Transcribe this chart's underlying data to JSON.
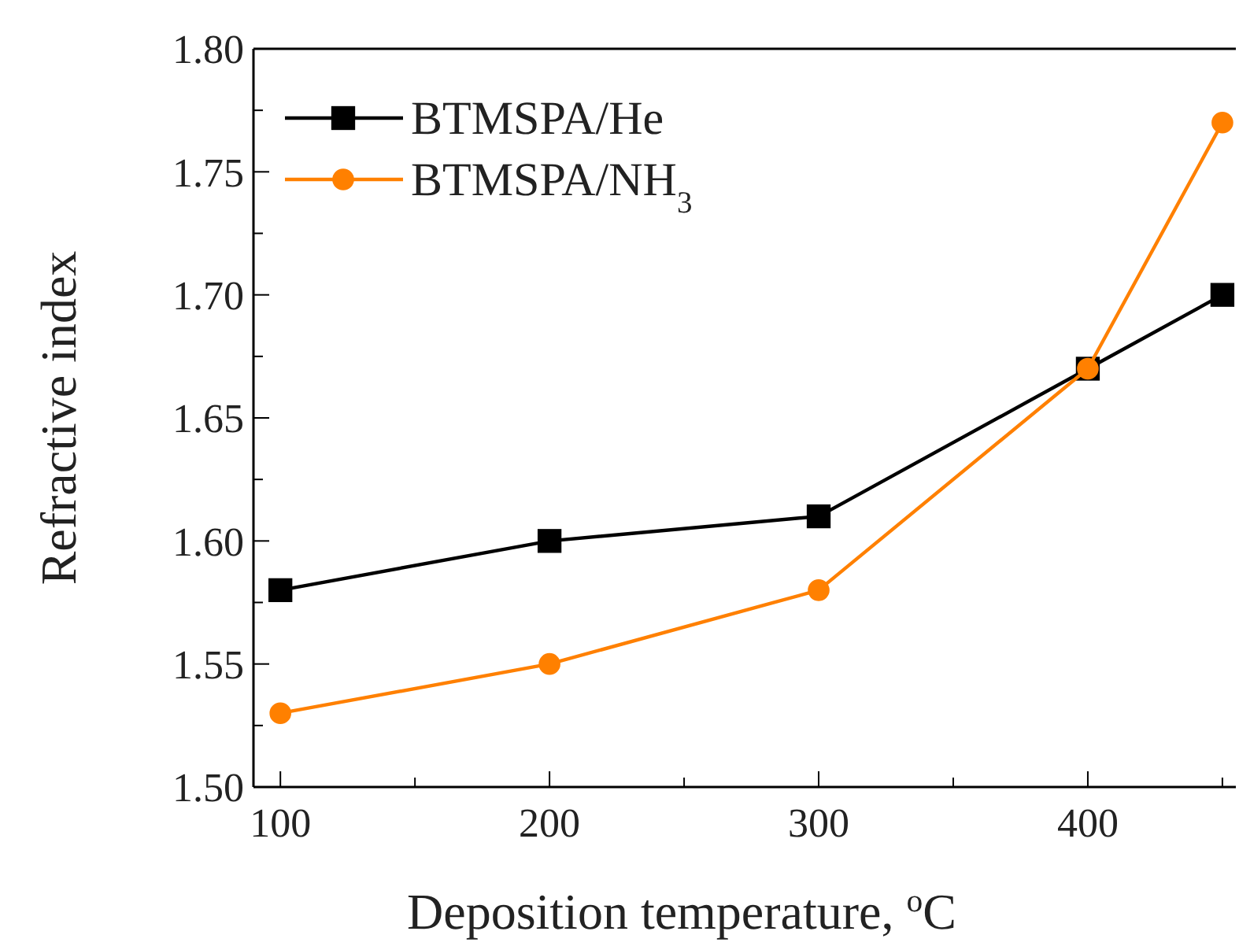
{
  "chart_data": {
    "type": "line",
    "xlabel": "Deposition temperature, $^{o}$C",
    "ylabel": "Refractive index",
    "x": [
      100,
      200,
      300,
      400,
      450
    ],
    "series": [
      {
        "name": "BTMSPA/He",
        "color": "#000000",
        "marker": "square",
        "values": [
          1.58,
          1.6,
          1.61,
          1.67,
          1.7
        ]
      },
      {
        "name": "BTMSPA/NH$_{3}$",
        "color": "#ff8000",
        "marker": "circle",
        "values": [
          1.53,
          1.55,
          1.58,
          1.67,
          1.77
        ]
      }
    ],
    "xlim": [
      90,
      455
    ],
    "xticks": [
      100,
      {
        "value": 150,
        "label": null
      },
      200,
      {
        "value": 250,
        "label": null
      },
      300,
      {
        "value": 350,
        "label": null
      },
      400,
      {
        "value": 450,
        "label": null
      }
    ],
    "ylim": [
      1.5,
      1.8
    ],
    "yticks": [
      "1.50",
      {
        "value": 1.525,
        "label": null
      },
      {
        "value": 1.55,
        "label": "1.55"
      },
      {
        "value": 1.575,
        "label": null
      },
      {
        "value": 1.6,
        "label": "1.60"
      },
      {
        "value": 1.625,
        "label": null
      },
      {
        "value": 1.65,
        "label": "1.65"
      },
      {
        "value": 1.675,
        "label": null
      },
      {
        "value": 1.7,
        "label": "1.70"
      },
      {
        "value": 1.725,
        "label": null
      },
      {
        "value": 1.75,
        "label": "1.75"
      },
      {
        "value": 1.775,
        "label": null
      },
      {
        "value": 1.8,
        "label": "1.80"
      }
    ],
    "legend": "top left",
    "grid": false,
    "line_style": "solid"
  }
}
